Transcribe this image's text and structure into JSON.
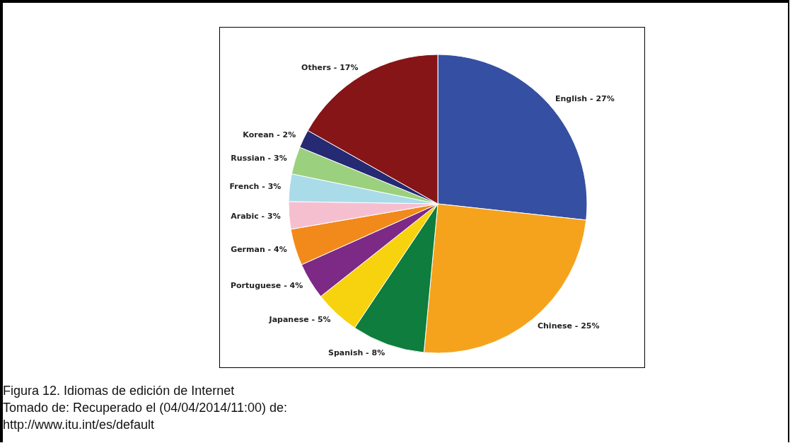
{
  "chart_data": {
    "type": "pie",
    "categories": [
      "English",
      "Chinese",
      "Spanish",
      "Japanese",
      "Portuguese",
      "German",
      "Arabic",
      "French",
      "Russian",
      "Korean",
      "Others"
    ],
    "values": [
      27,
      25,
      8,
      5,
      4,
      4,
      3,
      3,
      3,
      2,
      17
    ],
    "value_labels": [
      "27%",
      "25%",
      "8%",
      "5%",
      "4%",
      "4%",
      "3%",
      "3%",
      "3%",
      "2%",
      "17%"
    ],
    "colors": [
      "#3550a2",
      "#f5a31d",
      "#0e7d3d",
      "#f7d20f",
      "#7c2a85",
      "#f28a1b",
      "#f6bfd0",
      "#aadbe9",
      "#9bd17e",
      "#252a73",
      "#861517"
    ],
    "legend": false,
    "annotations": [
      "Figura 12. Idiomas de edición de Internet",
      "Tomado de: Recuperado el (04/04/2014/11:00) de:",
      "http://www.itu.int/es/default"
    ]
  }
}
